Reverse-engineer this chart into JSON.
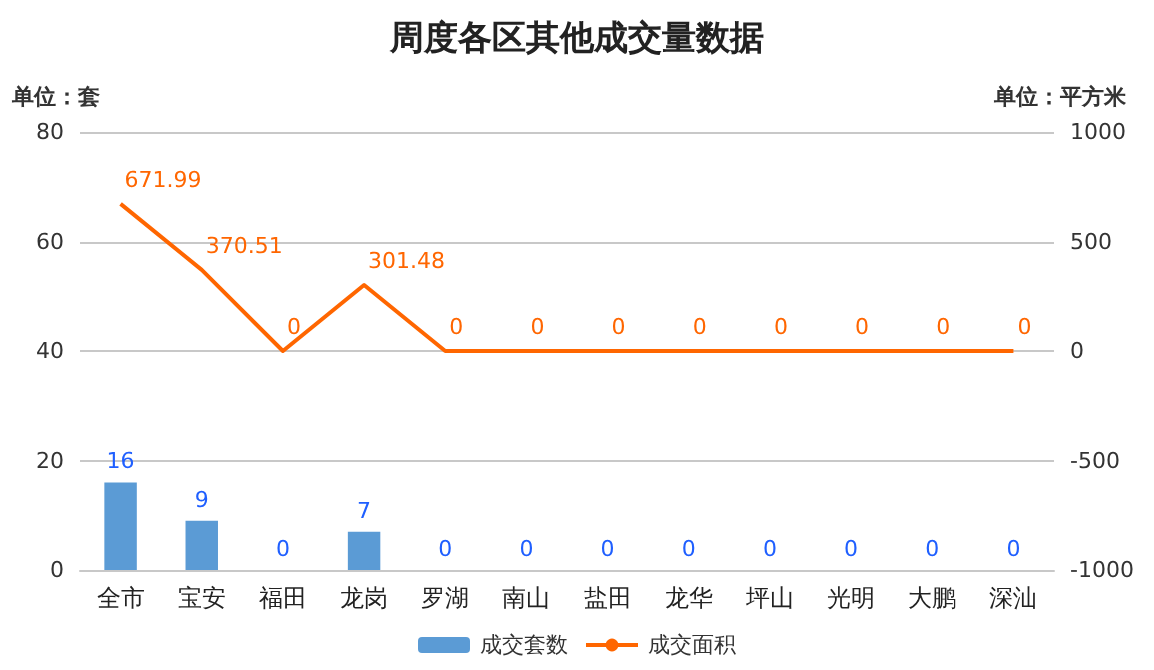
{
  "chart_data": {
    "type": "bar",
    "title": "周度各区其他成交量数据",
    "ylabel": "单位：套",
    "y2label": "单位：平方米",
    "categories": [
      "全市",
      "宝安",
      "福田",
      "龙岗",
      "罗湖",
      "南山",
      "盐田",
      "龙华",
      "坪山",
      "光明",
      "大鹏",
      "深汕"
    ],
    "series": [
      {
        "name": "成交套数",
        "color": "#5b9bd5",
        "values": [
          16,
          9,
          0,
          7,
          0,
          0,
          0,
          0,
          0,
          0,
          0,
          0
        ]
      },
      {
        "name": "成交面积",
        "type": "line",
        "axis": "y2",
        "color": "#ff6600",
        "marker": "none",
        "values": [
          671.99,
          370.51,
          0,
          301.48,
          0,
          0,
          0,
          0,
          0,
          0,
          0,
          0
        ]
      }
    ],
    "ylim": [
      0,
      80
    ],
    "yticks": [
      0,
      20,
      40,
      60,
      80
    ],
    "y2lim": [
      -1000,
      1000
    ],
    "y2ticks": [
      -1000,
      -500,
      0,
      500,
      1000
    ],
    "grid": "y",
    "legend": "bottom",
    "data_labels": true
  }
}
